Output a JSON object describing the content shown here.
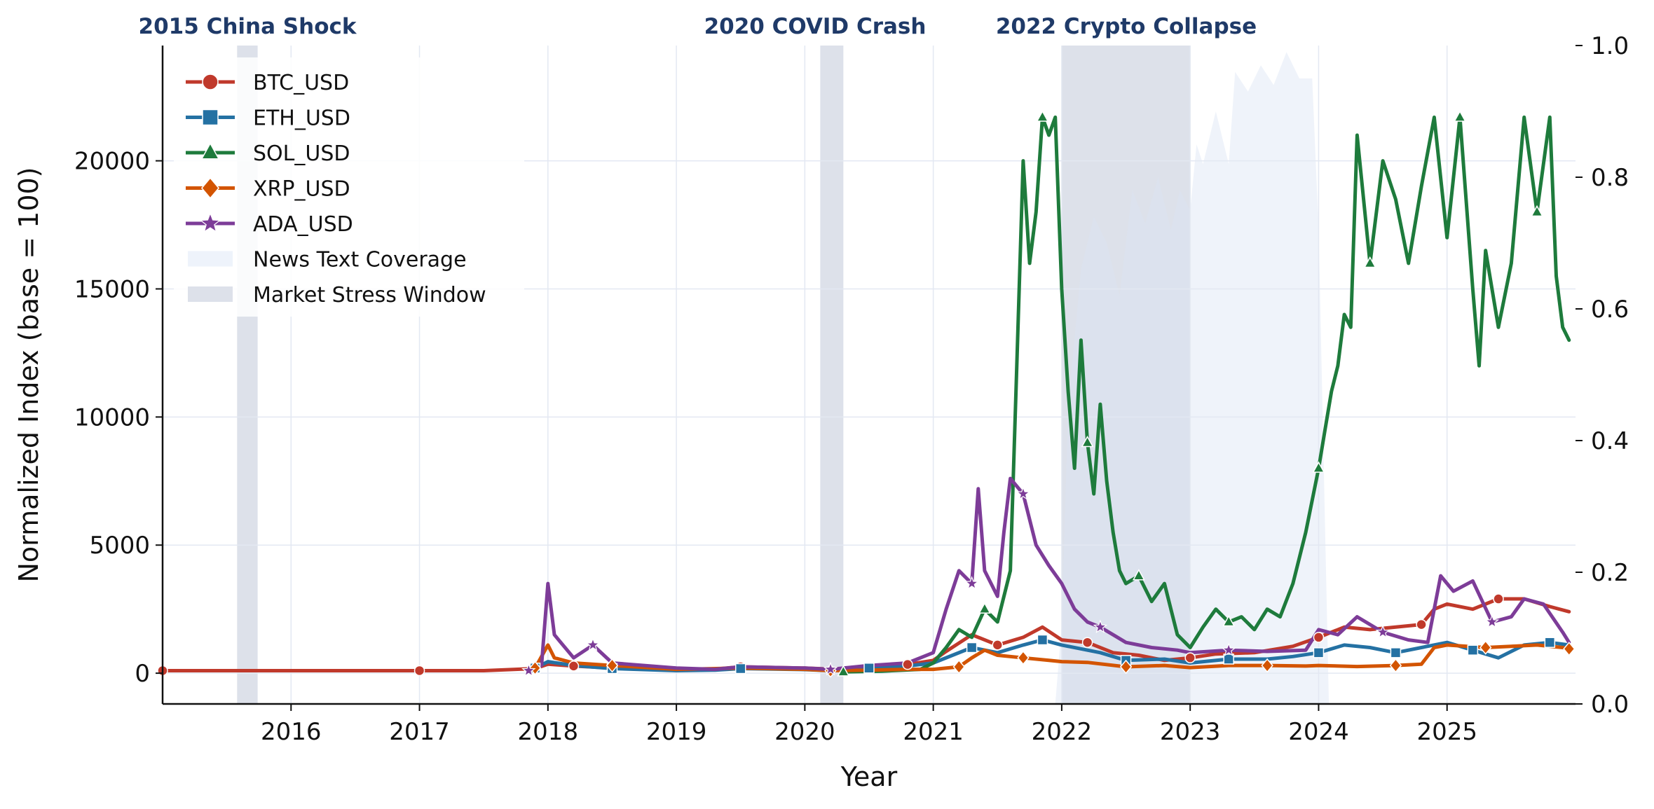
{
  "chart_data": {
    "type": "line",
    "xlabel": "Year",
    "ylabel": "Normalized Index  (base = 100)",
    "xlim": [
      2015.0,
      2026.0
    ],
    "ylim": [
      -1200,
      24500
    ],
    "y2lim": [
      0.0,
      1.0
    ],
    "x_ticks": [
      2016,
      2017,
      2018,
      2019,
      2020,
      2021,
      2022,
      2023,
      2024,
      2025
    ],
    "x_tick_labels": [
      "2016",
      "2017",
      "2018",
      "2019",
      "2020",
      "2021",
      "2022",
      "2023",
      "2024",
      "2025"
    ],
    "y_ticks": [
      0,
      5000,
      10000,
      15000,
      20000
    ],
    "y_tick_labels": [
      "0",
      "5000",
      "10000",
      "15000",
      "20000"
    ],
    "y2_ticks": [
      0.0,
      0.2,
      0.4,
      0.6,
      0.8,
      1.0
    ],
    "y2_tick_labels": [
      "0.0",
      "0.2",
      "0.4",
      "0.6",
      "0.8",
      "1.0"
    ],
    "grid": true,
    "legend_position": "upper-left",
    "stress_windows": [
      {
        "label": "2015 China Shock",
        "start": 2015.58,
        "end": 2015.74
      },
      {
        "label": "2020 COVID Crash",
        "start": 2020.12,
        "end": 2020.3
      },
      {
        "label": "2022 Crypto Collapse",
        "start": 2022.0,
        "end": 2023.0
      }
    ],
    "legend_entries": [
      "BTC_USD",
      "ETH_USD",
      "SOL_USD",
      "XRP_USD",
      "ADA_USD",
      "News Text Coverage",
      "Market Stress Window"
    ],
    "news_coverage": {
      "name": "News Text Coverage",
      "axis": "right",
      "x": [
        2021.95,
        2022.0,
        2022.05,
        2022.15,
        2022.25,
        2022.35,
        2022.45,
        2022.55,
        2022.65,
        2022.75,
        2022.85,
        2022.92,
        2023.0,
        2023.05,
        2023.1,
        2023.2,
        2023.3,
        2023.35,
        2023.45,
        2023.55,
        2023.65,
        2023.75,
        2023.85,
        2023.95,
        2024.0,
        2024.08
      ],
      "values": [
        0.0,
        0.12,
        0.45,
        0.66,
        0.74,
        0.7,
        0.62,
        0.78,
        0.73,
        0.8,
        0.72,
        0.78,
        0.75,
        0.85,
        0.82,
        0.9,
        0.82,
        0.96,
        0.93,
        0.97,
        0.94,
        0.99,
        0.95,
        0.95,
        0.72,
        0.0
      ],
      "color": "#dbe4f5"
    },
    "series": [
      {
        "name": "BTC_USD",
        "color": "#c0392b",
        "marker": "circle",
        "x": [
          2015.0,
          2015.5,
          2016.0,
          2016.5,
          2017.0,
          2017.5,
          2017.9,
          2018.0,
          2018.2,
          2018.5,
          2019.0,
          2019.3,
          2019.5,
          2020.0,
          2020.2,
          2020.5,
          2020.8,
          2021.0,
          2021.1,
          2021.3,
          2021.5,
          2021.7,
          2021.85,
          2022.0,
          2022.2,
          2022.4,
          2022.6,
          2022.8,
          2023.0,
          2023.2,
          2023.5,
          2023.8,
          2024.0,
          2024.2,
          2024.4,
          2024.6,
          2024.8,
          2024.9,
          2025.0,
          2025.2,
          2025.4,
          2025.6,
          2025.8,
          2025.95
        ],
        "values": [
          100,
          100,
          100,
          100,
          100,
          100,
          180,
          350,
          280,
          200,
          140,
          160,
          250,
          200,
          160,
          240,
          340,
          500,
          850,
          1500,
          1100,
          1400,
          1800,
          1300,
          1200,
          800,
          700,
          500,
          600,
          750,
          800,
          1050,
          1400,
          1800,
          1700,
          1800,
          1900,
          2500,
          2700,
          2500,
          2900,
          2900,
          2600,
          2400
        ]
      },
      {
        "name": "ETH_USD",
        "color": "#2471a3",
        "marker": "square",
        "x": [
          2017.9,
          2018.0,
          2018.2,
          2018.5,
          2019.0,
          2019.3,
          2019.5,
          2020.0,
          2020.2,
          2020.5,
          2020.8,
          2021.0,
          2021.3,
          2021.5,
          2021.7,
          2021.85,
          2022.0,
          2022.3,
          2022.5,
          2022.8,
          2023.0,
          2023.3,
          2023.6,
          2023.8,
          2024.0,
          2024.2,
          2024.4,
          2024.6,
          2024.8,
          2025.0,
          2025.2,
          2025.4,
          2025.6,
          2025.8,
          2025.95
        ],
        "values": [
          200,
          450,
          300,
          180,
          100,
          120,
          180,
          140,
          100,
          200,
          280,
          400,
          1000,
          800,
          1100,
          1300,
          1100,
          800,
          500,
          550,
          400,
          550,
          550,
          650,
          800,
          1100,
          1000,
          800,
          1000,
          1200,
          900,
          600,
          1100,
          1200,
          1100
        ]
      },
      {
        "name": "SOL_USD",
        "color": "#1e7b3c",
        "marker": "triangle",
        "x": [
          2020.3,
          2020.6,
          2020.9,
          2021.0,
          2021.1,
          2021.2,
          2021.3,
          2021.4,
          2021.5,
          2021.6,
          2021.65,
          2021.7,
          2021.75,
          2021.8,
          2021.85,
          2021.9,
          2021.95,
          2022.0,
          2022.05,
          2022.1,
          2022.15,
          2022.2,
          2022.25,
          2022.3,
          2022.35,
          2022.4,
          2022.45,
          2022.5,
          2022.6,
          2022.7,
          2022.8,
          2022.9,
          2023.0,
          2023.1,
          2023.2,
          2023.3,
          2023.4,
          2023.5,
          2023.6,
          2023.7,
          2023.8,
          2023.9,
          2024.0,
          2024.05,
          2024.1,
          2024.15,
          2024.2,
          2024.25,
          2024.3,
          2024.4,
          2024.5,
          2024.6,
          2024.7,
          2024.8,
          2024.9,
          2025.0,
          2025.1,
          2025.2,
          2025.25,
          2025.3,
          2025.4,
          2025.5,
          2025.6,
          2025.7,
          2025.8,
          2025.85,
          2025.9,
          2025.95
        ],
        "values": [
          50,
          80,
          150,
          400,
          1000,
          1700,
          1400,
          2500,
          2000,
          4000,
          12000,
          20000,
          16000,
          18000,
          21700,
          21000,
          21700,
          15000,
          11000,
          8000,
          13000,
          9000,
          7000,
          10500,
          7500,
          5500,
          4000,
          3500,
          3800,
          2800,
          3500,
          1500,
          1000,
          1800,
          2500,
          2000,
          2200,
          1700,
          2500,
          2200,
          3500,
          5500,
          8000,
          9500,
          11000,
          12000,
          14000,
          13500,
          21000,
          16000,
          20000,
          18500,
          16000,
          19000,
          21700,
          17000,
          21700,
          15000,
          12000,
          16500,
          13500,
          16000,
          21700,
          18000,
          21700,
          15500,
          13500,
          13000
        ]
      },
      {
        "name": "XRP_USD",
        "color": "#d35400",
        "marker": "diamond",
        "x": [
          2017.9,
          2018.0,
          2018.05,
          2018.2,
          2018.5,
          2019.0,
          2019.5,
          2020.0,
          2020.2,
          2020.5,
          2020.8,
          2021.0,
          2021.2,
          2021.3,
          2021.4,
          2021.5,
          2021.7,
          2021.9,
          2022.0,
          2022.2,
          2022.5,
          2022.8,
          2023.0,
          2023.3,
          2023.6,
          2023.9,
          2024.0,
          2024.3,
          2024.6,
          2024.8,
          2024.9,
          2025.0,
          2025.3,
          2025.5,
          2025.7,
          2025.9,
          2025.95
        ],
        "values": [
          200,
          1100,
          600,
          400,
          300,
          150,
          200,
          150,
          100,
          120,
          150,
          150,
          250,
          600,
          900,
          700,
          600,
          500,
          450,
          420,
          250,
          300,
          220,
          300,
          300,
          280,
          300,
          260,
          300,
          350,
          1000,
          1100,
          1000,
          1050,
          1100,
          1000,
          950
        ]
      },
      {
        "name": "ADA_USD",
        "color": "#7d3c98",
        "marker": "star",
        "x": [
          2017.85,
          2017.95,
          2018.0,
          2018.05,
          2018.1,
          2018.2,
          2018.35,
          2018.5,
          2019.0,
          2019.3,
          2019.5,
          2020.0,
          2020.2,
          2020.5,
          2020.8,
          2021.0,
          2021.1,
          2021.2,
          2021.3,
          2021.35,
          2021.4,
          2021.5,
          2021.55,
          2021.6,
          2021.7,
          2021.8,
          2021.9,
          2022.0,
          2022.1,
          2022.2,
          2022.3,
          2022.4,
          2022.5,
          2022.7,
          2022.9,
          2023.0,
          2023.3,
          2023.6,
          2023.9,
          2024.0,
          2024.15,
          2024.3,
          2024.5,
          2024.7,
          2024.85,
          2024.95,
          2025.05,
          2025.2,
          2025.35,
          2025.5,
          2025.6,
          2025.75,
          2025.9,
          2025.95
        ],
        "values": [
          100,
          300,
          3500,
          1500,
          1200,
          600,
          1100,
          400,
          200,
          150,
          250,
          200,
          150,
          300,
          400,
          800,
          2500,
          4000,
          3500,
          7200,
          4000,
          3000,
          5500,
          7600,
          7000,
          5000,
          4200,
          3500,
          2500,
          2000,
          1800,
          1500,
          1200,
          1000,
          900,
          800,
          900,
          850,
          900,
          1700,
          1500,
          2200,
          1600,
          1300,
          1200,
          3800,
          3200,
          3600,
          2000,
          2200,
          2900,
          2700,
          1600,
          1200
        ]
      }
    ]
  }
}
